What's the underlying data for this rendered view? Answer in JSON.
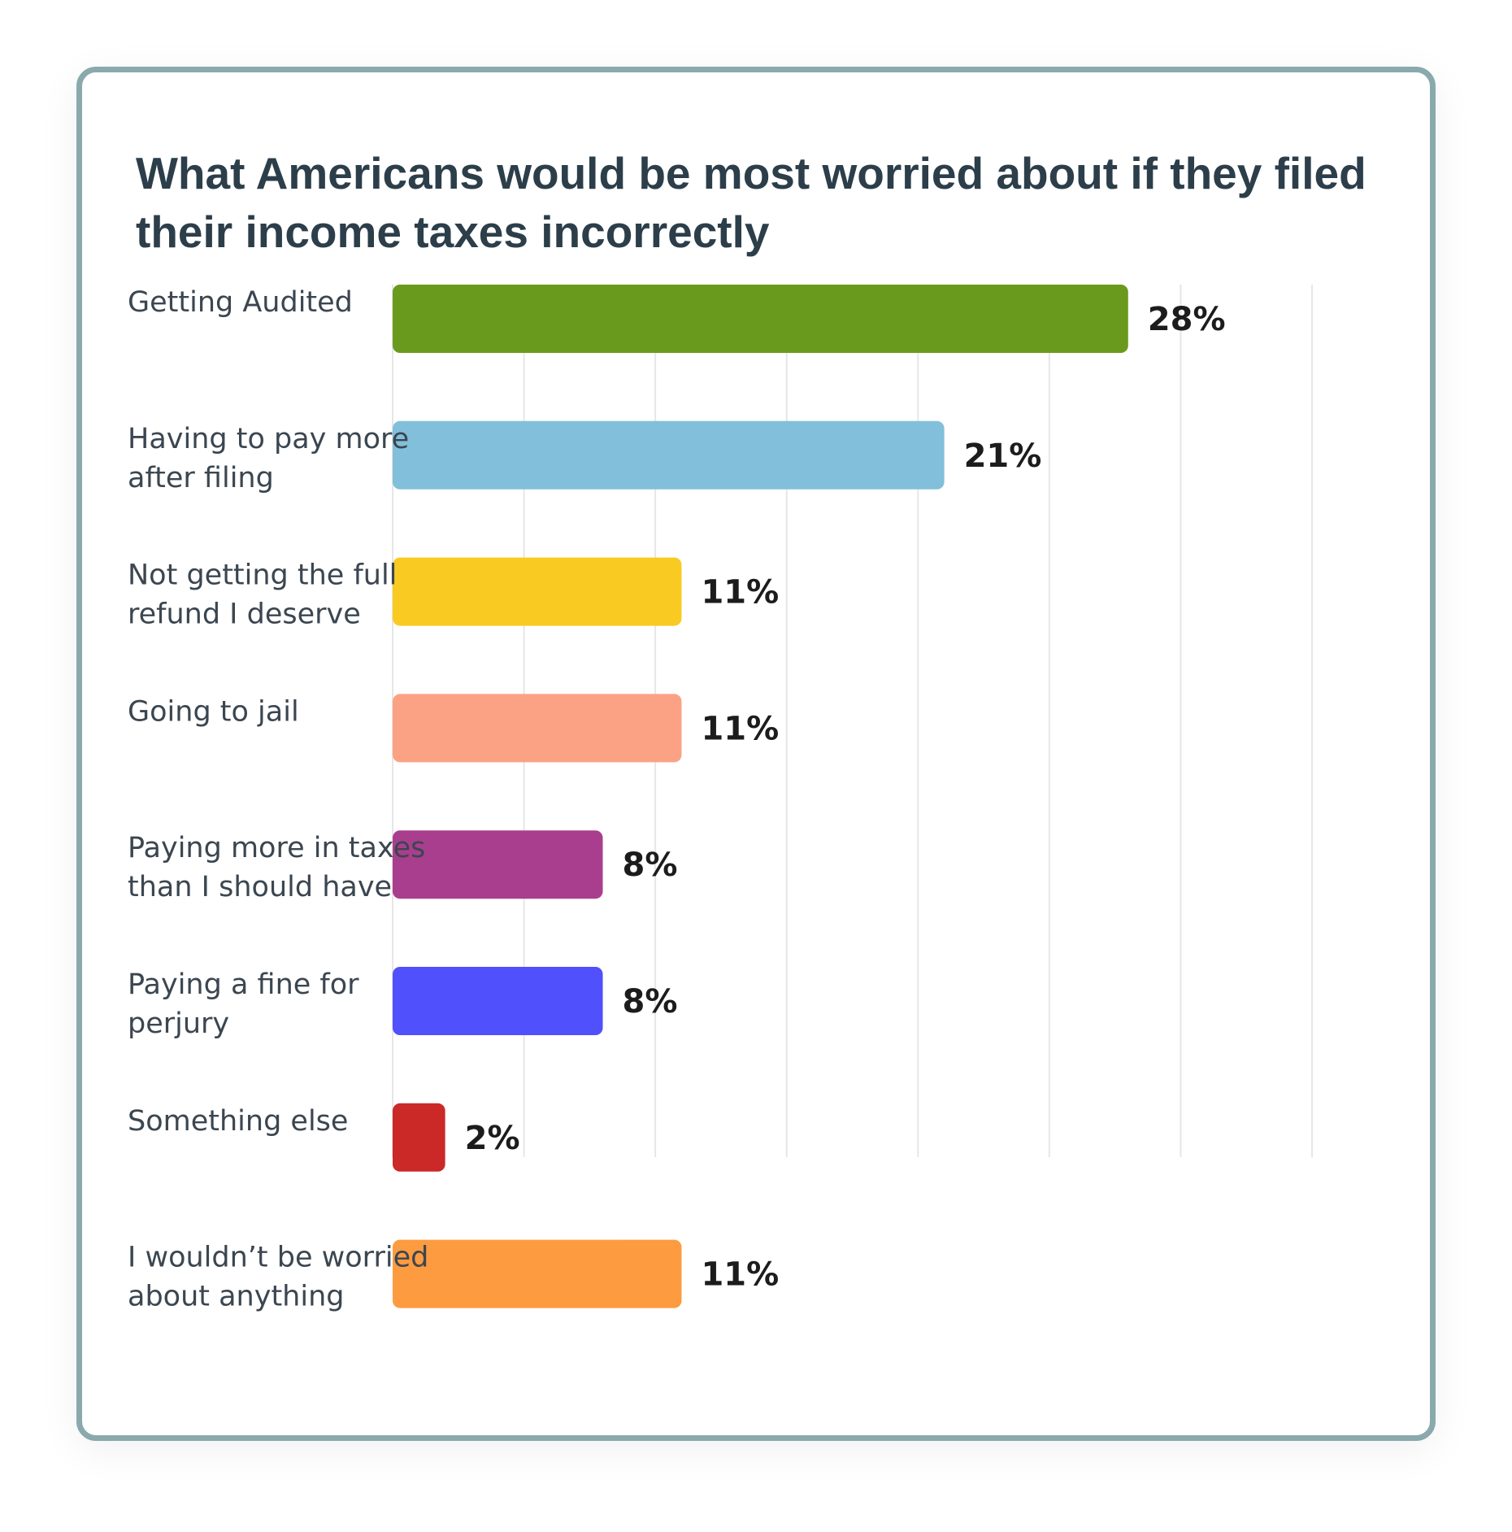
{
  "chart_data": {
    "type": "bar",
    "orientation": "horizontal",
    "title": "What Americans would be most worried about if they filed their income taxes incorrectly",
    "categories": [
      [
        "Getting Audited"
      ],
      [
        "Having to pay more",
        "after filing"
      ],
      [
        "Not getting the full",
        "refund I deserve"
      ],
      [
        "Going to jail"
      ],
      [
        "Paying more in taxes",
        "than I should have"
      ],
      [
        "Paying a fine for",
        "perjury"
      ],
      [
        "Something else"
      ],
      [
        "I wouldn’t be worried",
        "about anything"
      ]
    ],
    "values": [
      28,
      21,
      11,
      11,
      8,
      8,
      2,
      11
    ],
    "value_labels": [
      "28%",
      "21%",
      "11%",
      "11%",
      "8%",
      "8%",
      "2%",
      "11%"
    ],
    "colors": [
      "#6a9a1d",
      "#82bfda",
      "#f9cb22",
      "#fba285",
      "#aa3e8e",
      "#5050fc",
      "#cb2828",
      "#fc9b3f"
    ],
    "xlim": [
      0,
      35
    ],
    "x_gridlines": [
      5,
      10,
      15,
      20,
      25,
      30,
      35
    ],
    "grid": true,
    "legend": "none"
  }
}
